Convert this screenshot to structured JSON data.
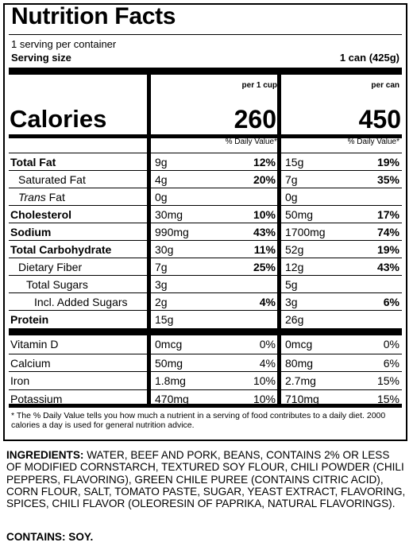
{
  "label": {
    "title": "Nutrition Facts",
    "servings": "1 serving per container",
    "serving_size_label": "Serving size",
    "serving_size_value": "1 can (425g)",
    "columns": [
      {
        "header": "per 1 cup",
        "calories": "260"
      },
      {
        "header": "per can",
        "calories": "450"
      }
    ],
    "calories_label": "Calories",
    "dv_header": "% Daily Value*",
    "nutrients": [
      {
        "name": "Total Fat",
        "bold": true,
        "indent": 0,
        "c1_amt": "9g",
        "c1_dv": "12%",
        "c2_amt": "15g",
        "c2_dv": "19%"
      },
      {
        "name": "Saturated Fat",
        "bold": false,
        "indent": 1,
        "c1_amt": "4g",
        "c1_dv": "20%",
        "c2_amt": "7g",
        "c2_dv": "35%"
      },
      {
        "name_italic": "Trans",
        "name": " Fat",
        "bold": false,
        "indent": 1,
        "c1_amt": "0g",
        "c1_dv": "",
        "c2_amt": "0g",
        "c2_dv": ""
      },
      {
        "name": "Cholesterol",
        "bold": true,
        "indent": 0,
        "c1_amt": "30mg",
        "c1_dv": "10%",
        "c2_amt": "50mg",
        "c2_dv": "17%"
      },
      {
        "name": "Sodium",
        "bold": true,
        "indent": 0,
        "c1_amt": "990mg",
        "c1_dv": "43%",
        "c2_amt": "1700mg",
        "c2_dv": "74%"
      },
      {
        "name": "Total Carbohydrate",
        "bold": true,
        "indent": 0,
        "c1_amt": "30g",
        "c1_dv": "11%",
        "c2_amt": "52g",
        "c2_dv": "19%"
      },
      {
        "name": "Dietary Fiber",
        "bold": false,
        "indent": 1,
        "c1_amt": "7g",
        "c1_dv": "25%",
        "c2_amt": "12g",
        "c2_dv": "43%"
      },
      {
        "name": "Total Sugars",
        "bold": false,
        "indent": 2,
        "c1_amt": "3g",
        "c1_dv": "",
        "c2_amt": "5g",
        "c2_dv": ""
      },
      {
        "name": "Incl. Added Sugars",
        "bold": false,
        "indent": 3,
        "c1_amt": "2g",
        "c1_dv": "4%",
        "c2_amt": "3g",
        "c2_dv": "6%"
      },
      {
        "name": "Protein",
        "bold": true,
        "indent": 0,
        "c1_amt": "15g",
        "c1_dv": "",
        "c2_amt": "26g",
        "c2_dv": ""
      }
    ],
    "vitamins": [
      {
        "name": "Vitamin D",
        "c1_amt": "0mcg",
        "c1_dv": "0%",
        "c2_amt": "0mcg",
        "c2_dv": "0%"
      },
      {
        "name": "Calcium",
        "c1_amt": "50mg",
        "c1_dv": "4%",
        "c2_amt": "80mg",
        "c2_dv": "6%"
      },
      {
        "name": "Iron",
        "c1_amt": "1.8mg",
        "c1_dv": "10%",
        "c2_amt": "2.7mg",
        "c2_dv": "15%"
      },
      {
        "name": "Potassium",
        "c1_amt": "470mg",
        "c1_dv": "10%",
        "c2_amt": "710mg",
        "c2_dv": "15%"
      }
    ],
    "footnote": "* The % Daily Value tells you how much a nutrient in a serving of food contributes to a daily diet. 2000 calories a day is used for general nutrition advice."
  },
  "ingredients": {
    "label": "INGREDIENTS:",
    "text": " WATER, BEEF AND PORK, BEANS, CONTAINS 2% OR LESS OF MODIFIED CORNSTARCH, TEXTURED SOY FLOUR, CHILI POWDER (CHILI PEPPERS, FLAVORING), GREEN CHILE PUREE (CONTAINS CITRIC ACID), CORN FLOUR, SALT, TOMATO PASTE, SUGAR, YEAST EXTRACT, FLAVORING, SPICES, CHILI FLAVOR (OLEORESIN OF PAPRIKA, NATURAL FLAVORINGS).",
    "contains": "CONTAINS: SOY."
  }
}
